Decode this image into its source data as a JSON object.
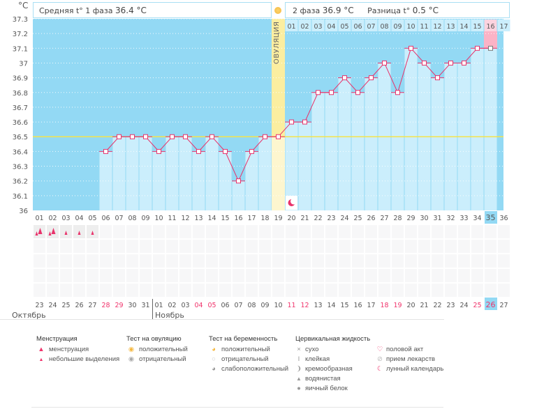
{
  "header": {
    "phase1_label": "Средняя t° 1 фаза",
    "phase1_value": "36.4 °C",
    "phase2_label": "2 фаза",
    "phase2_value": "36.9 °C",
    "diff_label": "Разница t°",
    "diff_value": "0.5 °C",
    "ovulation_label": "ОВУЛЯЦИЯ",
    "unit": "°C"
  },
  "chart_data": {
    "type": "line",
    "title": "",
    "ylabel": "°C",
    "ylim": [
      36,
      37.3
    ],
    "yticks": [
      "36",
      "36.1",
      "36.2",
      "36.3",
      "36.4",
      "36.5",
      "36.6",
      "36.7",
      "36.8",
      "36.9",
      "37",
      "37.1",
      "37.2",
      "37.3"
    ],
    "cycle_days": [
      "01",
      "02",
      "03",
      "04",
      "05",
      "06",
      "07",
      "08",
      "09",
      "10",
      "11",
      "12",
      "13",
      "14",
      "15",
      "16",
      "17",
      "18",
      "19",
      "20",
      "21",
      "22",
      "23",
      "24",
      "25",
      "26",
      "27",
      "28",
      "29",
      "30",
      "31",
      "32",
      "33",
      "34",
      "35",
      "36"
    ],
    "temperatures": [
      null,
      null,
      null,
      null,
      null,
      36.4,
      36.5,
      36.5,
      36.5,
      36.4,
      36.5,
      36.5,
      36.4,
      36.5,
      36.4,
      36.2,
      36.4,
      36.5,
      36.5,
      36.6,
      36.6,
      36.8,
      36.8,
      36.9,
      36.8,
      36.9,
      37.0,
      36.8,
      37.1,
      37.0,
      36.9,
      37.0,
      37.0,
      37.1,
      37.1,
      null
    ],
    "cover_line": 36.5,
    "ovulation_day": 19,
    "current_day": 35,
    "phase2_days": [
      "01",
      "02",
      "03",
      "04",
      "05",
      "06",
      "07",
      "08",
      "09",
      "10",
      "11",
      "12",
      "13",
      "14",
      "15",
      "16",
      "17"
    ],
    "dates": [
      "23",
      "24",
      "25",
      "26",
      "27",
      "28",
      "29",
      "30",
      "31",
      "01",
      "02",
      "03",
      "04",
      "05",
      "06",
      "07",
      "08",
      "09",
      "10",
      "11",
      "12",
      "13",
      "14",
      "15",
      "16",
      "17",
      "18",
      "19",
      "20",
      "21",
      "22",
      "23",
      "24",
      "25",
      "26",
      "27"
    ],
    "weekend_dates": [
      5,
      6,
      12,
      13,
      19,
      20,
      26,
      27,
      33,
      34
    ],
    "menstruation": [
      "heavy",
      "heavy",
      "light",
      "light",
      "light"
    ],
    "moon_day": 20,
    "months": [
      "Октябрь",
      "Ноябрь"
    ]
  },
  "colors": {
    "bg": "#93d9f4",
    "fill": "#cbeefc",
    "line": "#e8336b",
    "cover": "#f4e44c",
    "ovulation": "#fbeea0",
    "current": "#fbb3c6",
    "weekend": "#f0336b"
  },
  "legend": {
    "menstruation": {
      "title": "Менструация",
      "items": [
        "менструация",
        "небольшие выделения"
      ]
    },
    "ovulation_test": {
      "title": "Тест на овуляцию",
      "items": [
        "положительный",
        "отрицательный"
      ]
    },
    "pregnancy_test": {
      "title": "Тест на беременность",
      "items": [
        "положительный",
        "отрицательный",
        "слабоположительный"
      ]
    },
    "cervical": {
      "title": "Цервикальная жидкость",
      "items": [
        "сухо",
        "клейкая",
        "кремообразная",
        "водянистая",
        "яичный белок"
      ]
    },
    "other": {
      "items": [
        "половой акт",
        "прием лекарств",
        "лунный календарь"
      ]
    }
  }
}
